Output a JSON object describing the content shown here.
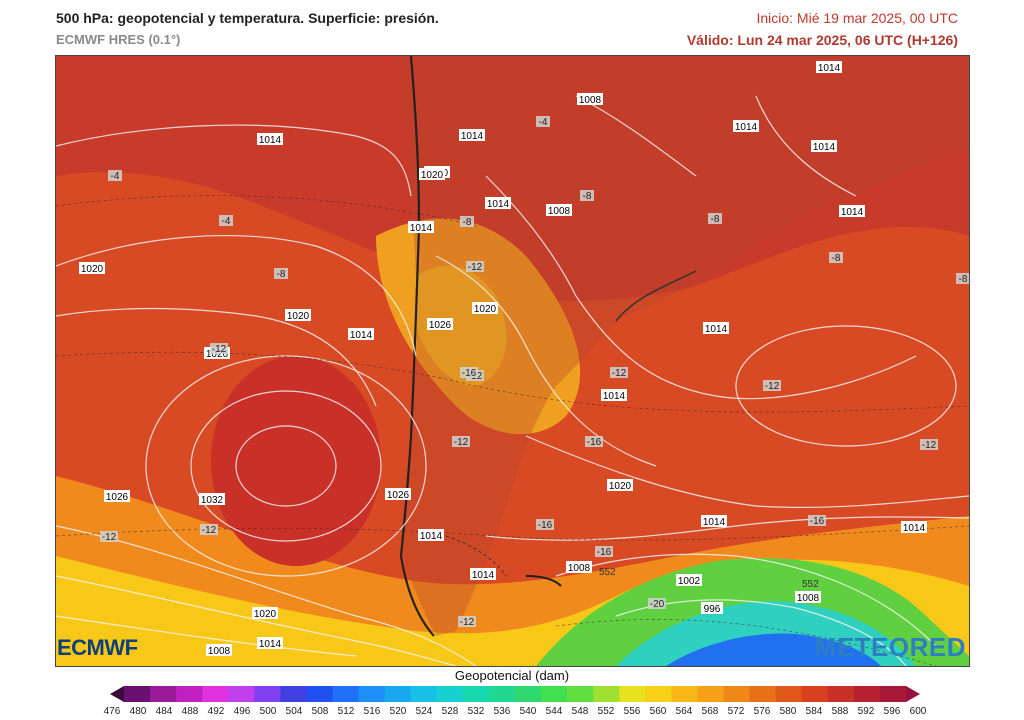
{
  "header": {
    "title": "500 hPa: geopotencial y temperatura. Superficie: presión.",
    "model": "ECMWF HRES (0.1°)",
    "init": "Inicio: Mié 19 mar 2025, 00 UTC",
    "valid": "Válido: Lun 24 mar 2025, 06 UTC (H+126)"
  },
  "logos": {
    "left": "ECMWF",
    "right": "METEORED"
  },
  "colorbar": {
    "title": "Geopotencial (dam)",
    "ticks": [
      "476",
      "480",
      "484",
      "488",
      "492",
      "496",
      "500",
      "504",
      "508",
      "512",
      "516",
      "520",
      "524",
      "528",
      "532",
      "536",
      "540",
      "544",
      "548",
      "552",
      "556",
      "560",
      "564",
      "568",
      "572",
      "576",
      "580",
      "584",
      "588",
      "592",
      "596",
      "600"
    ],
    "colors": [
      "#3a0a3a",
      "#6a1070",
      "#9a1a9a",
      "#c020c0",
      "#e030e0",
      "#c040f0",
      "#8040f0",
      "#4040e0",
      "#2050f0",
      "#2070f8",
      "#1c90f8",
      "#18a8f0",
      "#18c0e8",
      "#18d0d0",
      "#18d8b0",
      "#20d890",
      "#30d870",
      "#40e050",
      "#60e040",
      "#a0e030",
      "#e8e020",
      "#f8d018",
      "#f8b818",
      "#f8a018",
      "#f08818",
      "#e87018",
      "#e05818",
      "#d84020",
      "#c83028",
      "#b82030",
      "#a81838",
      "#981040"
    ]
  },
  "map": {
    "isobars": [
      {
        "value": "1014",
        "id": "iso-1014-a"
      },
      {
        "value": "1014",
        "id": "iso-1014-b"
      },
      {
        "value": "1020",
        "id": "iso-1020-a"
      },
      {
        "value": "1020",
        "id": "iso-1020-b"
      },
      {
        "value": "1026",
        "id": "iso-1026-a"
      },
      {
        "value": "1032",
        "id": "iso-1032"
      },
      {
        "value": "1026",
        "id": "iso-1026-b"
      },
      {
        "value": "1020",
        "id": "iso-1020-c"
      },
      {
        "value": "1014",
        "id": "iso-1014-c"
      },
      {
        "value": "1008",
        "id": "iso-1008-a"
      },
      {
        "value": "1008",
        "id": "iso-1008-b"
      },
      {
        "value": "1014",
        "id": "iso-1014-d"
      },
      {
        "value": "1014",
        "id": "iso-1014-e"
      },
      {
        "value": "1014",
        "id": "iso-1014-f"
      },
      {
        "value": "1014",
        "id": "iso-1014-g"
      },
      {
        "value": "1020",
        "id": "iso-1020-d"
      },
      {
        "value": "1026",
        "id": "iso-1026-c"
      },
      {
        "value": "1020",
        "id": "iso-1020-e"
      },
      {
        "value": "1014",
        "id": "iso-1014-h"
      },
      {
        "value": "1014",
        "id": "iso-1014-i"
      },
      {
        "value": "1014",
        "id": "iso-1014-j"
      },
      {
        "value": "1008",
        "id": "iso-1008-c"
      },
      {
        "value": "1008",
        "id": "iso-1008-d"
      },
      {
        "value": "1014",
        "id": "iso-1014-k"
      },
      {
        "value": "1020",
        "id": "iso-1020-f"
      },
      {
        "value": "1014",
        "id": "iso-1014-l"
      },
      {
        "value": "1014",
        "id": "iso-1014-m"
      },
      {
        "value": "1002",
        "id": "iso-1002"
      },
      {
        "value": "996",
        "id": "iso-996"
      },
      {
        "value": "1008",
        "id": "iso-1008-e"
      },
      {
        "value": "1014",
        "id": "iso-1014-n"
      },
      {
        "value": "1008",
        "id": "iso-1008-f"
      },
      {
        "value": "1020",
        "id": "iso-1020-g"
      },
      {
        "value": "1014",
        "id": "iso-1014-o"
      },
      {
        "value": "1014",
        "id": "iso-1014-p"
      }
    ],
    "temperatures": [
      "-4",
      "-4",
      "-4",
      "-8",
      "-8",
      "-8",
      "-8",
      "-8",
      "-8",
      "-12",
      "-12",
      "-12",
      "-12",
      "-12",
      "-12",
      "-12",
      "-16",
      "-16",
      "-16",
      "-16",
      "-12",
      "-12",
      "-16",
      "-20",
      "-12"
    ],
    "contour_labels": [
      "552",
      "552"
    ]
  }
}
